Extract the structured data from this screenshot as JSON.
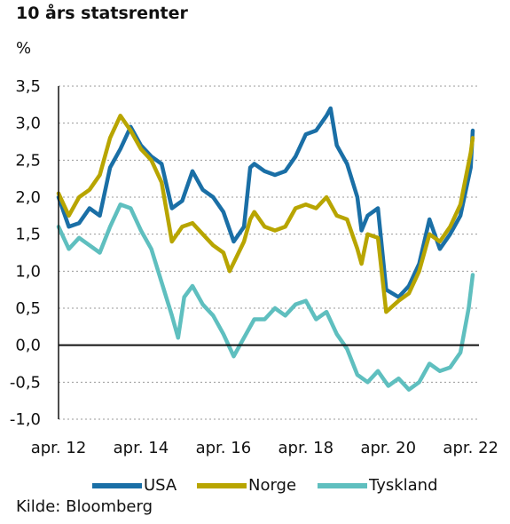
{
  "header": {
    "title": "10 års statsrenter",
    "unit": "%"
  },
  "footer": {
    "source": "Kilde: Bloomberg"
  },
  "chart_data": {
    "type": "line",
    "title": "10 års statsrenter",
    "ylabel": "%",
    "ylim": [
      -1.0,
      3.5
    ],
    "yticks": [
      "3,5",
      "3,0",
      "2,5",
      "2,0",
      "1,5",
      "1,0",
      "0,5",
      "0,0",
      "-0,5",
      "-1,0"
    ],
    "ytick_values": [
      3.5,
      3.0,
      2.5,
      2.0,
      1.5,
      1.0,
      0.5,
      0.0,
      -0.5,
      -1.0
    ],
    "xlim": [
      2012.25,
      2022.45
    ],
    "xticks": [
      "apr. 12",
      "apr. 14",
      "apr. 16",
      "apr. 18",
      "apr. 20",
      "apr. 22"
    ],
    "xtick_values": [
      2012.25,
      2014.25,
      2016.25,
      2018.25,
      2020.25,
      2022.25
    ],
    "grid": "horizontal-dotted",
    "legend": "bottom",
    "series": [
      {
        "name": "USA",
        "color": "#1a6fa6",
        "points": [
          [
            2012.25,
            2.0
          ],
          [
            2012.5,
            1.6
          ],
          [
            2012.75,
            1.65
          ],
          [
            2013.0,
            1.85
          ],
          [
            2013.25,
            1.75
          ],
          [
            2013.5,
            2.4
          ],
          [
            2013.75,
            2.65
          ],
          [
            2014.0,
            2.95
          ],
          [
            2014.25,
            2.7
          ],
          [
            2014.5,
            2.55
          ],
          [
            2014.75,
            2.45
          ],
          [
            2015.0,
            1.85
          ],
          [
            2015.25,
            1.95
          ],
          [
            2015.5,
            2.35
          ],
          [
            2015.75,
            2.1
          ],
          [
            2016.0,
            2.0
          ],
          [
            2016.25,
            1.8
          ],
          [
            2016.5,
            1.4
          ],
          [
            2016.75,
            1.6
          ],
          [
            2016.9,
            2.4
          ],
          [
            2017.0,
            2.45
          ],
          [
            2017.25,
            2.35
          ],
          [
            2017.5,
            2.3
          ],
          [
            2017.75,
            2.35
          ],
          [
            2018.0,
            2.55
          ],
          [
            2018.25,
            2.85
          ],
          [
            2018.5,
            2.9
          ],
          [
            2018.75,
            3.1
          ],
          [
            2018.85,
            3.2
          ],
          [
            2019.0,
            2.7
          ],
          [
            2019.25,
            2.45
          ],
          [
            2019.5,
            2.0
          ],
          [
            2019.6,
            1.55
          ],
          [
            2019.75,
            1.75
          ],
          [
            2020.0,
            1.85
          ],
          [
            2020.2,
            0.75
          ],
          [
            2020.5,
            0.65
          ],
          [
            2020.75,
            0.8
          ],
          [
            2021.0,
            1.1
          ],
          [
            2021.25,
            1.7
          ],
          [
            2021.5,
            1.3
          ],
          [
            2021.75,
            1.5
          ],
          [
            2022.0,
            1.75
          ],
          [
            2022.25,
            2.4
          ],
          [
            2022.3,
            2.9
          ]
        ]
      },
      {
        "name": "Norge",
        "color": "#b8a500",
        "points": [
          [
            2012.25,
            2.05
          ],
          [
            2012.5,
            1.75
          ],
          [
            2012.75,
            2.0
          ],
          [
            2013.0,
            2.1
          ],
          [
            2013.25,
            2.3
          ],
          [
            2013.5,
            2.8
          ],
          [
            2013.75,
            3.1
          ],
          [
            2014.0,
            2.9
          ],
          [
            2014.25,
            2.65
          ],
          [
            2014.5,
            2.5
          ],
          [
            2014.75,
            2.2
          ],
          [
            2015.0,
            1.4
          ],
          [
            2015.25,
            1.6
          ],
          [
            2015.5,
            1.65
          ],
          [
            2015.75,
            1.5
          ],
          [
            2016.0,
            1.35
          ],
          [
            2016.25,
            1.25
          ],
          [
            2016.4,
            1.0
          ],
          [
            2016.75,
            1.4
          ],
          [
            2016.9,
            1.7
          ],
          [
            2017.0,
            1.8
          ],
          [
            2017.25,
            1.6
          ],
          [
            2017.5,
            1.55
          ],
          [
            2017.75,
            1.6
          ],
          [
            2018.0,
            1.85
          ],
          [
            2018.25,
            1.9
          ],
          [
            2018.5,
            1.85
          ],
          [
            2018.75,
            2.0
          ],
          [
            2019.0,
            1.75
          ],
          [
            2019.25,
            1.7
          ],
          [
            2019.5,
            1.3
          ],
          [
            2019.6,
            1.1
          ],
          [
            2019.75,
            1.5
          ],
          [
            2020.0,
            1.45
          ],
          [
            2020.2,
            0.45
          ],
          [
            2020.5,
            0.6
          ],
          [
            2020.75,
            0.7
          ],
          [
            2021.0,
            1.0
          ],
          [
            2021.25,
            1.5
          ],
          [
            2021.5,
            1.4
          ],
          [
            2021.75,
            1.6
          ],
          [
            2022.0,
            1.9
          ],
          [
            2022.25,
            2.6
          ],
          [
            2022.3,
            2.8
          ]
        ]
      },
      {
        "name": "Tyskland",
        "color": "#5fbfbf",
        "points": [
          [
            2012.25,
            1.6
          ],
          [
            2012.5,
            1.3
          ],
          [
            2012.75,
            1.45
          ],
          [
            2013.0,
            1.35
          ],
          [
            2013.25,
            1.25
          ],
          [
            2013.5,
            1.6
          ],
          [
            2013.75,
            1.9
          ],
          [
            2014.0,
            1.85
          ],
          [
            2014.25,
            1.55
          ],
          [
            2014.5,
            1.3
          ],
          [
            2014.75,
            0.85
          ],
          [
            2015.0,
            0.4
          ],
          [
            2015.15,
            0.1
          ],
          [
            2015.3,
            0.65
          ],
          [
            2015.5,
            0.8
          ],
          [
            2015.75,
            0.55
          ],
          [
            2016.0,
            0.4
          ],
          [
            2016.25,
            0.15
          ],
          [
            2016.5,
            -0.15
          ],
          [
            2016.75,
            0.1
          ],
          [
            2017.0,
            0.35
          ],
          [
            2017.25,
            0.35
          ],
          [
            2017.5,
            0.5
          ],
          [
            2017.75,
            0.4
          ],
          [
            2018.0,
            0.55
          ],
          [
            2018.25,
            0.6
          ],
          [
            2018.5,
            0.35
          ],
          [
            2018.75,
            0.45
          ],
          [
            2019.0,
            0.15
          ],
          [
            2019.25,
            -0.05
          ],
          [
            2019.5,
            -0.4
          ],
          [
            2019.75,
            -0.5
          ],
          [
            2020.0,
            -0.35
          ],
          [
            2020.25,
            -0.55
          ],
          [
            2020.5,
            -0.45
          ],
          [
            2020.75,
            -0.6
          ],
          [
            2021.0,
            -0.5
          ],
          [
            2021.25,
            -0.25
          ],
          [
            2021.5,
            -0.35
          ],
          [
            2021.75,
            -0.3
          ],
          [
            2022.0,
            -0.1
          ],
          [
            2022.2,
            0.5
          ],
          [
            2022.3,
            0.95
          ]
        ]
      }
    ]
  }
}
